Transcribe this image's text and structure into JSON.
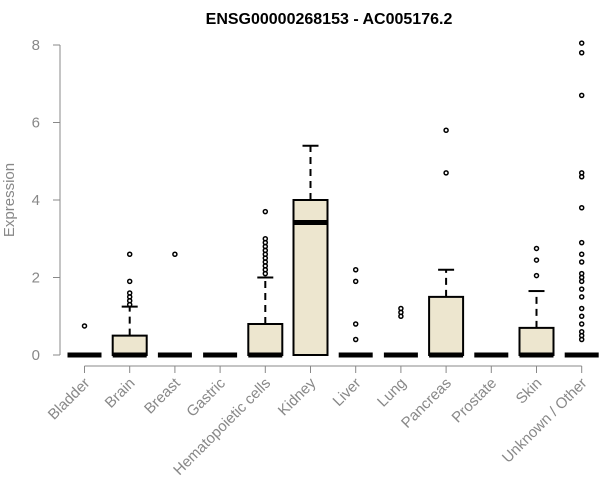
{
  "chart_data": {
    "type": "box",
    "title": "ENSG00000268153 - AC005176.2",
    "xlabel": "",
    "ylabel": "Expression",
    "ylim": [
      0,
      8
    ],
    "yticks": [
      0,
      2,
      4,
      6,
      8
    ],
    "categories": [
      "Bladder",
      "Brain",
      "Breast",
      "Gastric",
      "Hematopoietic cells",
      "Kidney",
      "Liver",
      "Lung",
      "Pancreas",
      "Prostate",
      "Skin",
      "Unknown / Other"
    ],
    "boxes": [
      {
        "q1": 0,
        "median": 0,
        "q3": 0,
        "whisker_low": 0,
        "whisker_high": 0,
        "outliers": [
          0.75
        ]
      },
      {
        "q1": 0,
        "median": 0,
        "q3": 0.5,
        "whisker_low": 0,
        "whisker_high": 1.25,
        "outliers": [
          1.3,
          1.4,
          1.5,
          1.6,
          1.9,
          2.6
        ]
      },
      {
        "q1": 0,
        "median": 0,
        "q3": 0,
        "whisker_low": 0,
        "whisker_high": 0,
        "outliers": [
          2.6
        ]
      },
      {
        "q1": 0,
        "median": 0,
        "q3": 0,
        "whisker_low": 0,
        "whisker_high": 0,
        "outliers": []
      },
      {
        "q1": 0,
        "median": 0,
        "q3": 0.8,
        "whisker_low": 0,
        "whisker_high": 2.0,
        "outliers": [
          2.1,
          2.2,
          2.3,
          2.4,
          2.5,
          2.6,
          2.7,
          2.8,
          2.9,
          3.0,
          3.7
        ]
      },
      {
        "q1": 0,
        "median": 3.42,
        "q3": 4.0,
        "whisker_low": 0,
        "whisker_high": 5.4,
        "outliers": []
      },
      {
        "q1": 0,
        "median": 0,
        "q3": 0,
        "whisker_low": 0,
        "whisker_high": 0,
        "outliers": [
          0.4,
          0.8,
          1.9,
          2.2
        ]
      },
      {
        "q1": 0,
        "median": 0,
        "q3": 0,
        "whisker_low": 0,
        "whisker_high": 0,
        "outliers": [
          1.0,
          1.1,
          1.2
        ]
      },
      {
        "q1": 0,
        "median": 0,
        "q3": 1.5,
        "whisker_low": 0,
        "whisker_high": 2.2,
        "outliers": [
          4.7,
          5.8
        ]
      },
      {
        "q1": 0,
        "median": 0,
        "q3": 0,
        "whisker_low": 0,
        "whisker_high": 0,
        "outliers": []
      },
      {
        "q1": 0,
        "median": 0,
        "q3": 0.7,
        "whisker_low": 0,
        "whisker_high": 1.65,
        "outliers": [
          2.05,
          2.45,
          2.75
        ]
      },
      {
        "q1": 0,
        "median": 0,
        "q3": 0,
        "whisker_low": 0,
        "whisker_high": 0,
        "outliers": [
          0.4,
          0.5,
          0.6,
          0.8,
          1.0,
          1.2,
          1.5,
          1.7,
          1.9,
          2.0,
          2.1,
          2.4,
          2.6,
          2.9,
          3.8,
          4.6,
          4.7,
          6.7,
          7.8,
          8.05
        ]
      }
    ],
    "box_fill": "#ede6cf",
    "line_color": "#000000",
    "axis_color": "#888888",
    "grid": false,
    "legend": "none"
  }
}
